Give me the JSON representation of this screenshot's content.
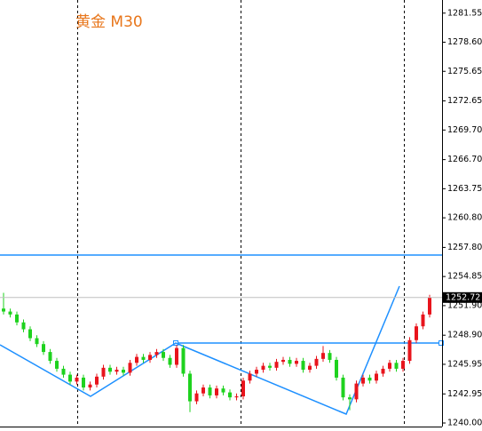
{
  "chart_data": {
    "type": "candlestick",
    "title": "黄金 M30",
    "open": [
      1251.6,
      1251.3,
      1251.0,
      1250.2,
      1249.5,
      1248.6,
      1248.0,
      1247.2,
      1246.3,
      1245.5,
      1244.9,
      1244.2,
      1244.6,
      1243.6,
      1243.9,
      1244.7,
      1245.6,
      1245.2,
      1245.4,
      1245.1,
      1246.1,
      1246.7,
      1246.4,
      1246.9,
      1247.2,
      1246.6,
      1245.9,
      1247.6,
      1245.0,
      1242.2,
      1243.0,
      1243.6,
      1242.8,
      1243.5,
      1243.1,
      1242.6,
      1242.7,
      1244.3,
      1245.0,
      1245.4,
      1245.8,
      1245.6,
      1246.2,
      1246.4,
      1246.0,
      1246.3,
      1245.4,
      1245.8,
      1246.5,
      1247.1,
      1246.4,
      1244.6,
      1242.6,
      1242.4,
      1244.0,
      1244.6,
      1244.3,
      1245.0,
      1245.5,
      1246.1,
      1245.5,
      1246.3,
      1248.4,
      1249.8,
      1251.0
    ],
    "high": [
      1253.2,
      1251.6,
      1251.3,
      1250.5,
      1249.8,
      1248.9,
      1248.3,
      1247.5,
      1246.6,
      1245.8,
      1245.2,
      1244.9,
      1244.9,
      1244.2,
      1245.0,
      1245.9,
      1245.9,
      1245.7,
      1245.7,
      1246.4,
      1247.0,
      1247.0,
      1247.2,
      1247.5,
      1247.5,
      1246.9,
      1247.9,
      1247.9,
      1245.3,
      1243.3,
      1243.9,
      1243.9,
      1243.8,
      1243.8,
      1243.4,
      1243.0,
      1244.6,
      1245.3,
      1245.7,
      1246.1,
      1246.1,
      1246.5,
      1246.7,
      1246.7,
      1246.6,
      1246.6,
      1246.1,
      1246.8,
      1247.8,
      1247.4,
      1246.7,
      1244.9,
      1242.9,
      1244.3,
      1244.9,
      1244.9,
      1245.3,
      1245.8,
      1246.4,
      1246.4,
      1246.6,
      1248.7,
      1250.1,
      1251.3,
      1253.0
    ],
    "low": [
      1251.0,
      1250.7,
      1249.9,
      1249.2,
      1248.3,
      1247.7,
      1246.9,
      1246.0,
      1245.2,
      1244.6,
      1243.9,
      1243.9,
      1243.3,
      1243.3,
      1243.6,
      1244.4,
      1244.9,
      1244.9,
      1244.8,
      1244.8,
      1245.8,
      1246.1,
      1246.1,
      1246.6,
      1246.3,
      1245.6,
      1245.6,
      1244.7,
      1241.1,
      1241.9,
      1242.7,
      1242.5,
      1242.5,
      1242.8,
      1242.3,
      1242.3,
      1242.4,
      1244.0,
      1244.7,
      1245.1,
      1245.3,
      1245.3,
      1245.9,
      1245.7,
      1245.7,
      1245.1,
      1245.1,
      1245.5,
      1246.2,
      1246.1,
      1244.3,
      1242.3,
      1241.3,
      1242.1,
      1243.7,
      1244.0,
      1244.0,
      1244.7,
      1245.2,
      1245.2,
      1245.2,
      1246.0,
      1248.1,
      1249.5,
      1250.7
    ],
    "close": [
      1251.3,
      1251.0,
      1250.2,
      1249.5,
      1248.6,
      1248.0,
      1247.2,
      1246.3,
      1245.5,
      1244.9,
      1244.2,
      1244.6,
      1243.6,
      1243.9,
      1244.7,
      1245.6,
      1245.2,
      1245.4,
      1245.1,
      1246.1,
      1246.7,
      1246.4,
      1246.9,
      1247.2,
      1246.6,
      1245.9,
      1247.6,
      1245.0,
      1242.2,
      1243.0,
      1243.6,
      1242.8,
      1243.5,
      1243.1,
      1242.6,
      1242.7,
      1244.3,
      1245.0,
      1245.4,
      1245.8,
      1245.6,
      1246.2,
      1246.4,
      1246.0,
      1246.3,
      1245.4,
      1245.8,
      1246.5,
      1247.1,
      1246.4,
      1244.6,
      1242.6,
      1242.4,
      1244.0,
      1244.6,
      1244.3,
      1245.0,
      1245.5,
      1246.1,
      1245.5,
      1246.3,
      1248.4,
      1249.8,
      1251.0,
      1252.72
    ],
    "up_color": "#e8141c",
    "down_color": "#1ed21e",
    "ylim": [
      1239.64,
      1282.88
    ],
    "yticks": [
      {
        "value": 1240,
        "label": "1240.00"
      },
      1242.95,
      1245.95,
      {
        "value": 1248.9,
        "label": "1248.90"
      },
      {
        "value": 1251.9,
        "label": "1251.90"
      },
      1254.85,
      {
        "value": 1257.8,
        "label": "1257.80"
      },
      {
        "value": 1260.8,
        "label": "1260.80"
      },
      1263.75,
      {
        "value": 1266.7,
        "label": "1266.70"
      },
      {
        "value": 1269.7,
        "label": "1269.70"
      },
      1272.65,
      1275.65,
      {
        "value": 1278.6,
        "label": "1278.60"
      },
      1281.55
    ]
  }
}
